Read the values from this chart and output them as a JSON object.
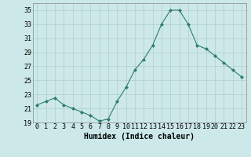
{
  "x": [
    0,
    1,
    2,
    3,
    4,
    5,
    6,
    7,
    8,
    9,
    10,
    11,
    12,
    13,
    14,
    15,
    16,
    17,
    18,
    19,
    20,
    21,
    22,
    23
  ],
  "y": [
    21.5,
    22.0,
    22.5,
    21.5,
    21.0,
    20.5,
    20.0,
    19.2,
    19.5,
    22.0,
    24.0,
    26.5,
    28.0,
    30.0,
    33.0,
    35.0,
    35.0,
    33.0,
    30.0,
    29.5,
    28.5,
    27.5,
    26.5,
    25.5
  ],
  "xlabel": "Humidex (Indice chaleur)",
  "ylabel": "",
  "xlim": [
    -0.5,
    23.5
  ],
  "ylim": [
    19,
    36
  ],
  "yticks": [
    19,
    21,
    23,
    25,
    27,
    29,
    31,
    33,
    35
  ],
  "xticks": [
    0,
    1,
    2,
    3,
    4,
    5,
    6,
    7,
    8,
    9,
    10,
    11,
    12,
    13,
    14,
    15,
    16,
    17,
    18,
    19,
    20,
    21,
    22,
    23
  ],
  "line_color": "#2e7d6e",
  "marker_color": "#2e7d6e",
  "bg_color": "#cce8e8",
  "grid_color": "#b0cece",
  "label_fontsize": 7,
  "tick_fontsize": 6
}
